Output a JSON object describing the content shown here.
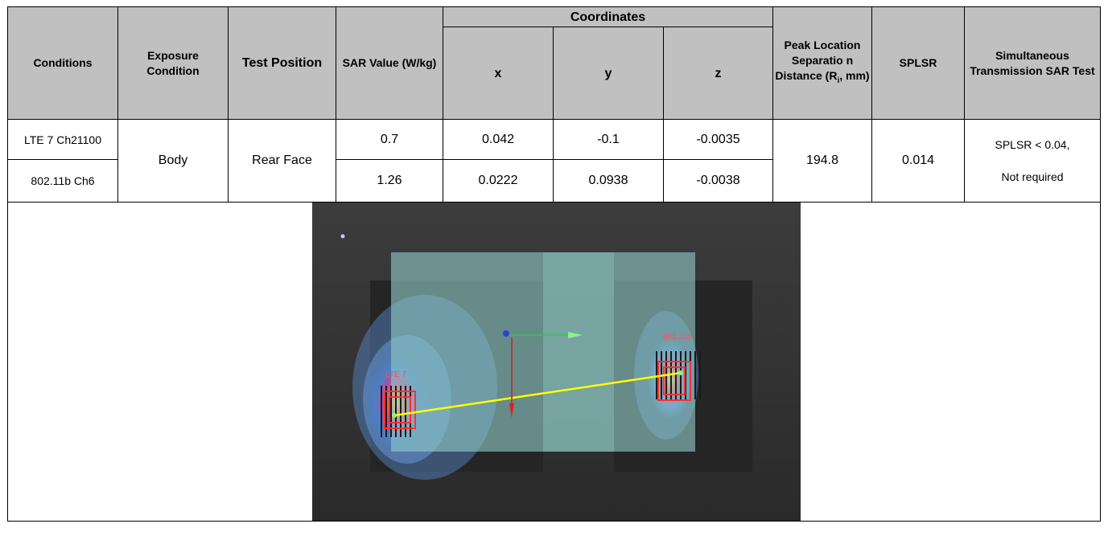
{
  "headers": {
    "conditions": "Conditions",
    "exposure_condition": "Exposure Condition",
    "test_position": "Test Position",
    "sar_value": "SAR Value (W/kg)",
    "coordinates": "Coordinates",
    "x": "x",
    "y": "y",
    "z": "z",
    "peak_sep_1": "Peak Location Separatio n Distance (R",
    "peak_sep_sub": "i",
    "peak_sep_2": ", mm)",
    "splsr": "SPLSR",
    "simultaneous": "Simultaneous Transmission SAR Test"
  },
  "rows": [
    {
      "condition": "LTE 7 Ch21100",
      "sar": "0.7",
      "x": "0.042",
      "y": "-0.1",
      "z": "-0.0035"
    },
    {
      "condition": "802.11b Ch6",
      "sar": "1.26",
      "x": "0.0222",
      "y": "0.0938",
      "z": "-0.0038"
    }
  ],
  "shared": {
    "exposure": "Body",
    "position": "Rear Face",
    "peak_distance": "194.8",
    "splsr": "0.014",
    "result_line1": "SPLSR < 0.04,",
    "result_line2": "Not required"
  },
  "plot": {
    "label_lte": "LTE 7",
    "label_wifi": "802.11b",
    "colors": {
      "background_top": "#3a3a3a",
      "background_bottom": "#2a2a2a",
      "phantom": "#8ec9c6",
      "device": "#2b2b2b",
      "line": "#ffff00",
      "axis_x": "#2ecc40",
      "axis_y": "#e02020",
      "marker": "#ff3030"
    }
  }
}
